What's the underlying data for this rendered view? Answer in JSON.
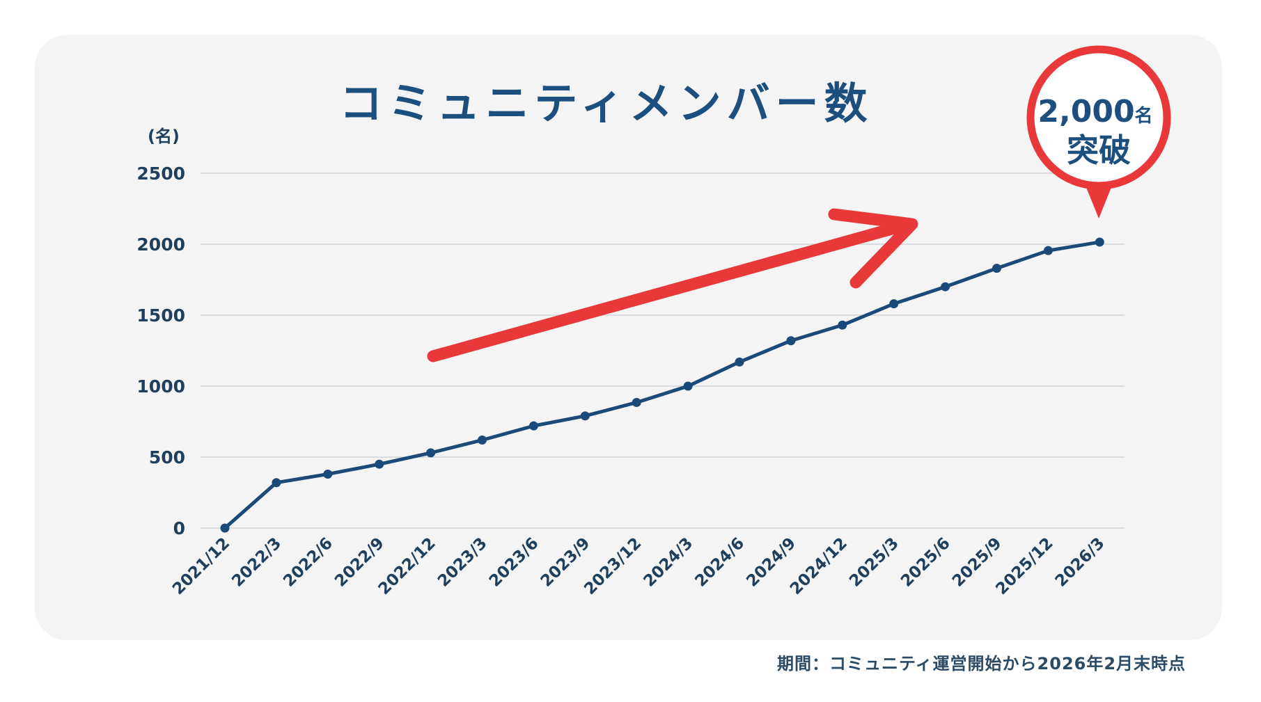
{
  "title": "コミュニティメンバー数",
  "unit_label": "(名)",
  "footnote": "期間：コミュニティ運営開始から2026年2月末時点",
  "badge": {
    "line1_number": "2,000",
    "line1_suffix": "名",
    "line2": "突破"
  },
  "colors": {
    "line": "#1b4a78",
    "title": "#1c4f7e",
    "accent_red": "#e8383a",
    "grid": "#d9dde1",
    "card_bg": "#f4f4f4"
  },
  "chart_data": {
    "type": "line",
    "title": "コミュニティメンバー数",
    "xlabel": "",
    "ylabel": "(名)",
    "ylim": [
      0,
      2500
    ],
    "yticks": [
      0,
      500,
      1000,
      1500,
      2000,
      2500
    ],
    "grid": true,
    "legend": null,
    "categories": [
      "2021/12",
      "2022/3",
      "2022/6",
      "2022/9",
      "2022/12",
      "2023/3",
      "2023/6",
      "2023/9",
      "2023/12",
      "2024/3",
      "2024/6",
      "2024/9",
      "2024/12",
      "2025/3",
      "2025/6",
      "2025/9",
      "2025/12",
      "2026/3"
    ],
    "series": [
      {
        "name": "コミュニティメンバー数",
        "values": [
          0,
          320,
          380,
          450,
          530,
          620,
          720,
          790,
          885,
          1000,
          1170,
          1320,
          1430,
          1580,
          1700,
          1830,
          1955,
          2015
        ]
      }
    ],
    "annotations": [
      {
        "type": "callout",
        "text": "2,000名突破",
        "target": "2026/3"
      },
      {
        "type": "arrow",
        "direction": "up-right",
        "color": "#e8383a"
      }
    ],
    "footnote": "期間：コミュニティ運営開始から2026年2月末時点"
  }
}
